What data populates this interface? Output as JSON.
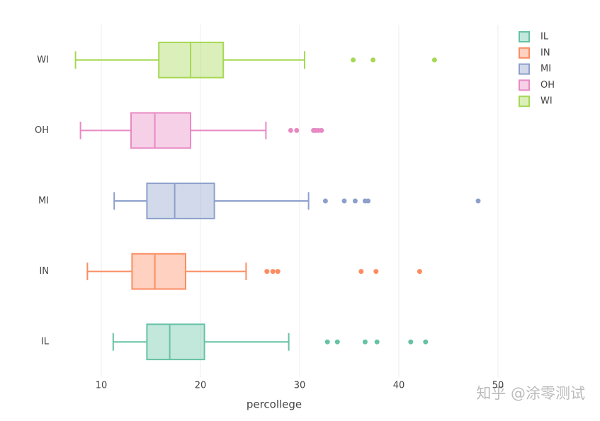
{
  "chart_data": {
    "type": "box",
    "x_label": "percollege",
    "xlim": [
      5.5,
      52
    ],
    "xticks": [
      10,
      20,
      30,
      40,
      50
    ],
    "grid": true,
    "legend": "top-right",
    "series": [
      {
        "name": "IL",
        "color": "#66c2a5",
        "min": 11.2,
        "q1": 14.6,
        "median": 16.9,
        "q3": 20.4,
        "max": 28.9,
        "outliers": [
          32.8,
          33.8,
          36.6,
          37.8,
          41.2,
          42.7
        ]
      },
      {
        "name": "IN",
        "color": "#fc8d62",
        "min": 8.6,
        "q1": 13.1,
        "median": 15.4,
        "q3": 18.5,
        "max": 24.6,
        "outliers": [
          26.7,
          27.3,
          27.8,
          36.2,
          37.7,
          42.1
        ]
      },
      {
        "name": "MI",
        "color": "#8da0cb",
        "min": 11.3,
        "q1": 14.6,
        "median": 17.4,
        "q3": 21.4,
        "max": 30.9,
        "outliers": [
          32.6,
          34.5,
          35.6,
          36.6,
          36.9,
          48.0
        ]
      },
      {
        "name": "OH",
        "color": "#e78ac3",
        "min": 7.9,
        "q1": 13.0,
        "median": 15.4,
        "q3": 19.0,
        "max": 26.6,
        "outliers": [
          29.1,
          29.7,
          31.4,
          31.6,
          31.9,
          32.2
        ]
      },
      {
        "name": "WI",
        "color": "#a6d854",
        "min": 7.4,
        "q1": 15.8,
        "median": 19.0,
        "q3": 22.3,
        "max": 30.5,
        "outliers": [
          35.4,
          37.4,
          43.6
        ]
      }
    ]
  },
  "watermark": "知乎 @涂零测试"
}
